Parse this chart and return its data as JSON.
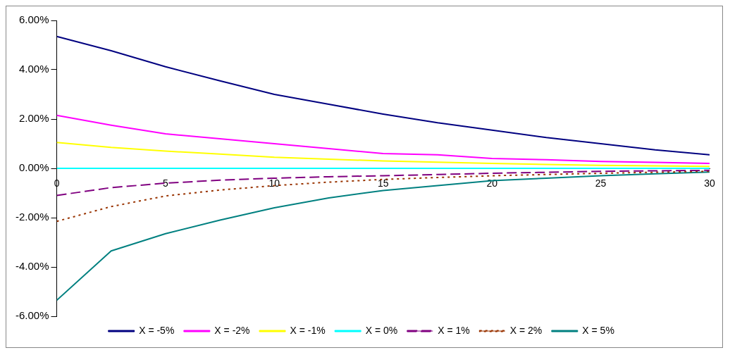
{
  "chart_data": {
    "type": "line",
    "x": [
      0,
      2.5,
      5,
      7.5,
      10,
      12.5,
      15,
      17.5,
      20,
      22.5,
      25,
      27.5,
      30
    ],
    "series": [
      {
        "name": "X = -5%",
        "color": "#000080",
        "values": [
          5.35,
          4.77,
          4.12,
          3.55,
          3.0,
          2.6,
          2.2,
          1.85,
          1.55,
          1.25,
          1.0,
          0.75,
          0.55
        ]
      },
      {
        "name": "X = -2%",
        "color": "#ff00ff",
        "values": [
          2.15,
          1.75,
          1.4,
          1.2,
          1.0,
          0.8,
          0.6,
          0.55,
          0.4,
          0.35,
          0.28,
          0.24,
          0.2
        ]
      },
      {
        "name": "X = -1%",
        "color": "#ffff00",
        "values": [
          1.05,
          0.85,
          0.7,
          0.58,
          0.45,
          0.37,
          0.3,
          0.25,
          0.2,
          0.16,
          0.12,
          0.1,
          0.08
        ]
      },
      {
        "name": "X = 0%",
        "color": "#00ffff",
        "values": [
          0,
          0,
          0,
          0,
          0,
          0,
          0,
          0,
          0,
          0,
          0,
          0,
          0
        ]
      },
      {
        "name": "X = 1%",
        "color": "#800080",
        "line_style": "dashed",
        "values": [
          -1.1,
          -0.78,
          -0.6,
          -0.48,
          -0.4,
          -0.34,
          -0.3,
          -0.25,
          -0.2,
          -0.16,
          -0.12,
          -0.1,
          -0.08
        ]
      },
      {
        "name": "X = 2%",
        "color": "#993300",
        "line_style": "dotted",
        "values": [
          -2.15,
          -1.55,
          -1.12,
          -0.88,
          -0.7,
          -0.56,
          -0.45,
          -0.37,
          -0.3,
          -0.25,
          -0.2,
          -0.16,
          -0.12
        ]
      },
      {
        "name": "X = 5%",
        "color": "#008080",
        "values": [
          -5.35,
          -3.35,
          -2.65,
          -2.1,
          -1.6,
          -1.2,
          -0.9,
          -0.7,
          -0.5,
          -0.4,
          -0.3,
          -0.22,
          -0.15
        ]
      }
    ],
    "xlim": [
      0,
      30
    ],
    "xticks": [
      0,
      5,
      10,
      15,
      20,
      25,
      30
    ],
    "ylim": [
      -6,
      6
    ],
    "yticks": [
      {
        "value": -6,
        "label": "-6.00%"
      },
      {
        "value": -4,
        "label": "-4.00%"
      },
      {
        "value": -2,
        "label": "-2.00%"
      },
      {
        "value": 0,
        "label": "0.00%"
      },
      {
        "value": 2,
        "label": "2.00%"
      },
      {
        "value": 4,
        "label": "4.00%"
      },
      {
        "value": 6,
        "label": "6.00%"
      }
    ],
    "grid": false,
    "legend": "bottom",
    "marker": "none"
  }
}
